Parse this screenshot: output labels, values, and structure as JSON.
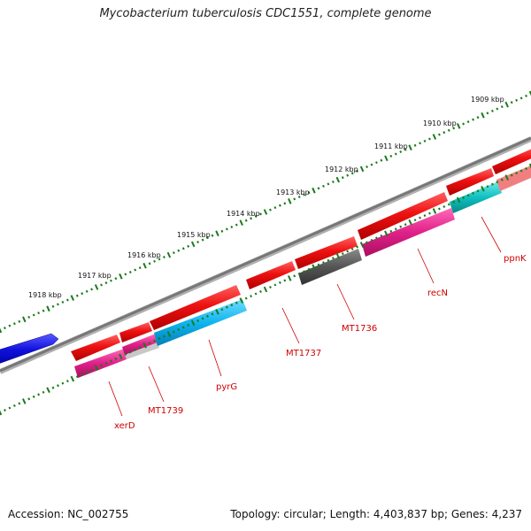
{
  "title": "Mycobacterium tuberculosis CDC1551, complete genome",
  "footer": {
    "accession": "Accession: NC_002755",
    "topology": "Topology: circular; Length: 4,403,837 bp; Genes: 4,237"
  },
  "ruler_labels": [
    "1918 kbp",
    "1917 kbp",
    "1916 kbp",
    "1915 kbp",
    "1914 kbp",
    "1913 kbp",
    "1912 kbp",
    "1911 kbp",
    "1910 kbp",
    "1909 kbp"
  ],
  "gene_labels": [
    "xerD",
    "MT1739",
    "pyrG",
    "MT1737",
    "MT1736",
    "recN",
    "ppnK"
  ],
  "colors": {
    "forward_gene": "#ee1111",
    "reverse_magenta": "#e0208a",
    "reverse_cyan": "#10b4ee",
    "reverse_teal": "#10c0c0",
    "reverse_grey": "#555555",
    "blue_gene": "#1010dd",
    "backbone": "#888888",
    "ruler": "#1a7a1a",
    "label": "#d00000"
  }
}
